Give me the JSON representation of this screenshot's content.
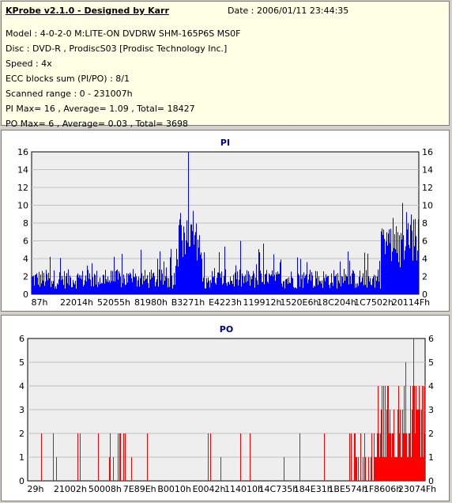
{
  "header": {
    "title": "KProbe v2.1.0 - Designed by Karr",
    "date": "Date : 2006/01/11 23:44:35",
    "lines": [
      "Model : 4-0-2-0 M:LITE-ON DVDRW SHM-165P6S MS0F",
      "Disc : DVD-R , ProdiscS03   [Prodisc Technology Inc.]",
      "Speed : 4x",
      "ECC blocks sum (PI/PO) : 8/1",
      "Scanned range : 0 - 231007h",
      "PI Max= 16 , Average= 1.09 , Total= 18427",
      "PO Max= 6 , Average= 0.03 , Total= 3698"
    ]
  },
  "chart_data": [
    {
      "type": "bar",
      "title": "PI",
      "ylim": [
        0,
        16
      ],
      "yticks": [
        "0",
        "2",
        "4",
        "6",
        "8",
        "10",
        "12",
        "14",
        "16"
      ],
      "xticks": [
        "87h",
        "22014h",
        "52055h",
        "81980h",
        "B3271h",
        "E4223h",
        "119912h",
        "1520E6h",
        "18C204h",
        "1C7502h",
        "20114Fh"
      ],
      "series_color": "#0000ff",
      "grid_color": "#c0c0c0",
      "background": "#eeeeee",
      "max": 16,
      "average": 1.09,
      "total": 18427
    },
    {
      "type": "bar",
      "title": "PO",
      "ylim": [
        0,
        6
      ],
      "yticks": [
        "0",
        "1",
        "2",
        "3",
        "4",
        "5",
        "6"
      ],
      "xticks": [
        "29h",
        "21002h",
        "50008h",
        "7E89Eh",
        "B0010h",
        "E0042h",
        "114010h",
        "14C735h",
        "184E31h",
        "1BE574h",
        "1F8606h",
        "23074Fh"
      ],
      "series_color": "#ff0000",
      "grid_color": "#c0c0c0",
      "background": "#eeeeee",
      "max": 6,
      "average": 0.03,
      "total": 3698
    }
  ]
}
